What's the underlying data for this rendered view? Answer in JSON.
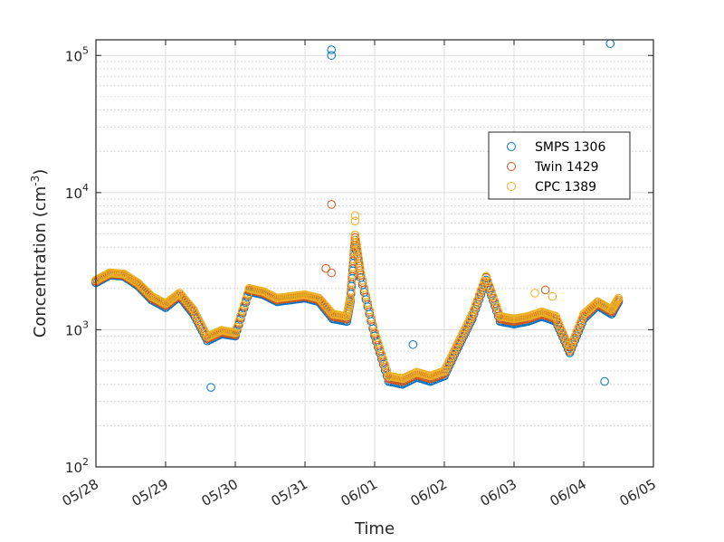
{
  "chart_data": {
    "type": "scatter",
    "xlabel": "Time",
    "ylabel": "Concentration (cm",
    "ylabel_superscript": "-3",
    "ylabel_close": ")",
    "yscale": "log",
    "grid": true,
    "legend_position": "right",
    "xlim": [
      "05/28",
      "06/05"
    ],
    "ylim": [
      100,
      130000
    ],
    "x_ticks": [
      "05/28",
      "05/29",
      "05/30",
      "05/31",
      "06/01",
      "06/02",
      "06/03",
      "06/04",
      "06/05"
    ],
    "y_ticks": [
      {
        "base": "10",
        "exp": "2",
        "value": 100
      },
      {
        "base": "10",
        "exp": "3",
        "value": 1000
      },
      {
        "base": "10",
        "exp": "4",
        "value": 10000
      },
      {
        "base": "10",
        "exp": "5",
        "value": 100000
      }
    ],
    "x_unit": "day (05/28 = 0)",
    "series": [
      {
        "name": "SMPS 1306",
        "color": "#0072BD",
        "x": [
          0.0,
          0.2,
          0.4,
          0.6,
          0.8,
          1.0,
          1.2,
          1.4,
          1.6,
          1.8,
          2.0,
          2.2,
          2.4,
          2.6,
          2.8,
          3.0,
          3.2,
          3.4,
          3.6,
          3.65,
          3.72,
          3.8,
          4.0,
          4.2,
          4.4,
          4.6,
          4.8,
          5.0,
          5.2,
          5.4,
          5.6,
          5.8,
          6.0,
          6.2,
          6.4,
          6.6,
          6.8,
          7.0,
          7.2,
          7.4,
          7.5,
          3.38,
          3.38,
          7.38,
          1.65,
          4.55,
          7.3
        ],
        "y": [
          2200,
          2500,
          2450,
          2100,
          1650,
          1450,
          1750,
          1300,
          830,
          930,
          900,
          1900,
          1800,
          1600,
          1650,
          1700,
          1600,
          1200,
          1150,
          1600,
          4500,
          2400,
          900,
          420,
          400,
          450,
          420,
          460,
          750,
          1200,
          2300,
          1150,
          1100,
          1150,
          1250,
          1150,
          680,
          1200,
          1500,
          1300,
          1600,
          100000,
          110000,
          122000,
          380,
          780,
          420
        ]
      },
      {
        "name": "Twin 1429",
        "color": "#D95319",
        "x": [
          0.0,
          0.2,
          0.4,
          0.6,
          0.8,
          1.0,
          1.2,
          1.4,
          1.6,
          1.8,
          2.0,
          2.2,
          2.4,
          2.6,
          2.8,
          3.0,
          3.2,
          3.4,
          3.6,
          3.65,
          3.72,
          3.8,
          4.0,
          4.2,
          4.4,
          4.6,
          4.8,
          5.0,
          5.2,
          5.4,
          5.6,
          5.8,
          6.0,
          6.2,
          6.4,
          6.6,
          6.8,
          7.0,
          7.2,
          7.4,
          7.5,
          3.38,
          3.38,
          3.3,
          6.45
        ],
        "y": [
          2250,
          2550,
          2500,
          2150,
          1700,
          1500,
          1800,
          1350,
          860,
          960,
          920,
          1950,
          1850,
          1650,
          1700,
          1750,
          1650,
          1250,
          1200,
          1650,
          4700,
          2500,
          930,
          440,
          420,
          470,
          440,
          480,
          780,
          1250,
          2400,
          1200,
          1150,
          1200,
          1300,
          1200,
          700,
          1250,
          1550,
          1350,
          1650,
          8200,
          2600,
          2800,
          1950
        ]
      },
      {
        "name": "CPC 1389",
        "color": "#EDB120",
        "x": [
          0.0,
          0.2,
          0.4,
          0.6,
          0.8,
          1.0,
          1.2,
          1.4,
          1.6,
          1.8,
          2.0,
          2.2,
          2.4,
          2.6,
          2.8,
          3.0,
          3.2,
          3.4,
          3.6,
          3.65,
          3.72,
          3.8,
          4.0,
          4.2,
          4.4,
          4.6,
          4.8,
          5.0,
          5.2,
          5.4,
          5.6,
          5.8,
          6.0,
          6.2,
          6.4,
          6.6,
          6.8,
          7.0,
          7.2,
          7.4,
          7.5,
          3.72,
          3.72,
          6.3,
          6.55
        ],
        "y": [
          2300,
          2600,
          2550,
          2200,
          1750,
          1550,
          1850,
          1400,
          890,
          990,
          950,
          2000,
          1900,
          1700,
          1750,
          1800,
          1700,
          1300,
          1250,
          1700,
          4900,
          2600,
          960,
          460,
          440,
          490,
          460,
          500,
          810,
          1300,
          2450,
          1250,
          1200,
          1250,
          1350,
          1250,
          720,
          1300,
          1600,
          1400,
          1700,
          6800,
          6200,
          1850,
          1750
        ]
      }
    ]
  }
}
